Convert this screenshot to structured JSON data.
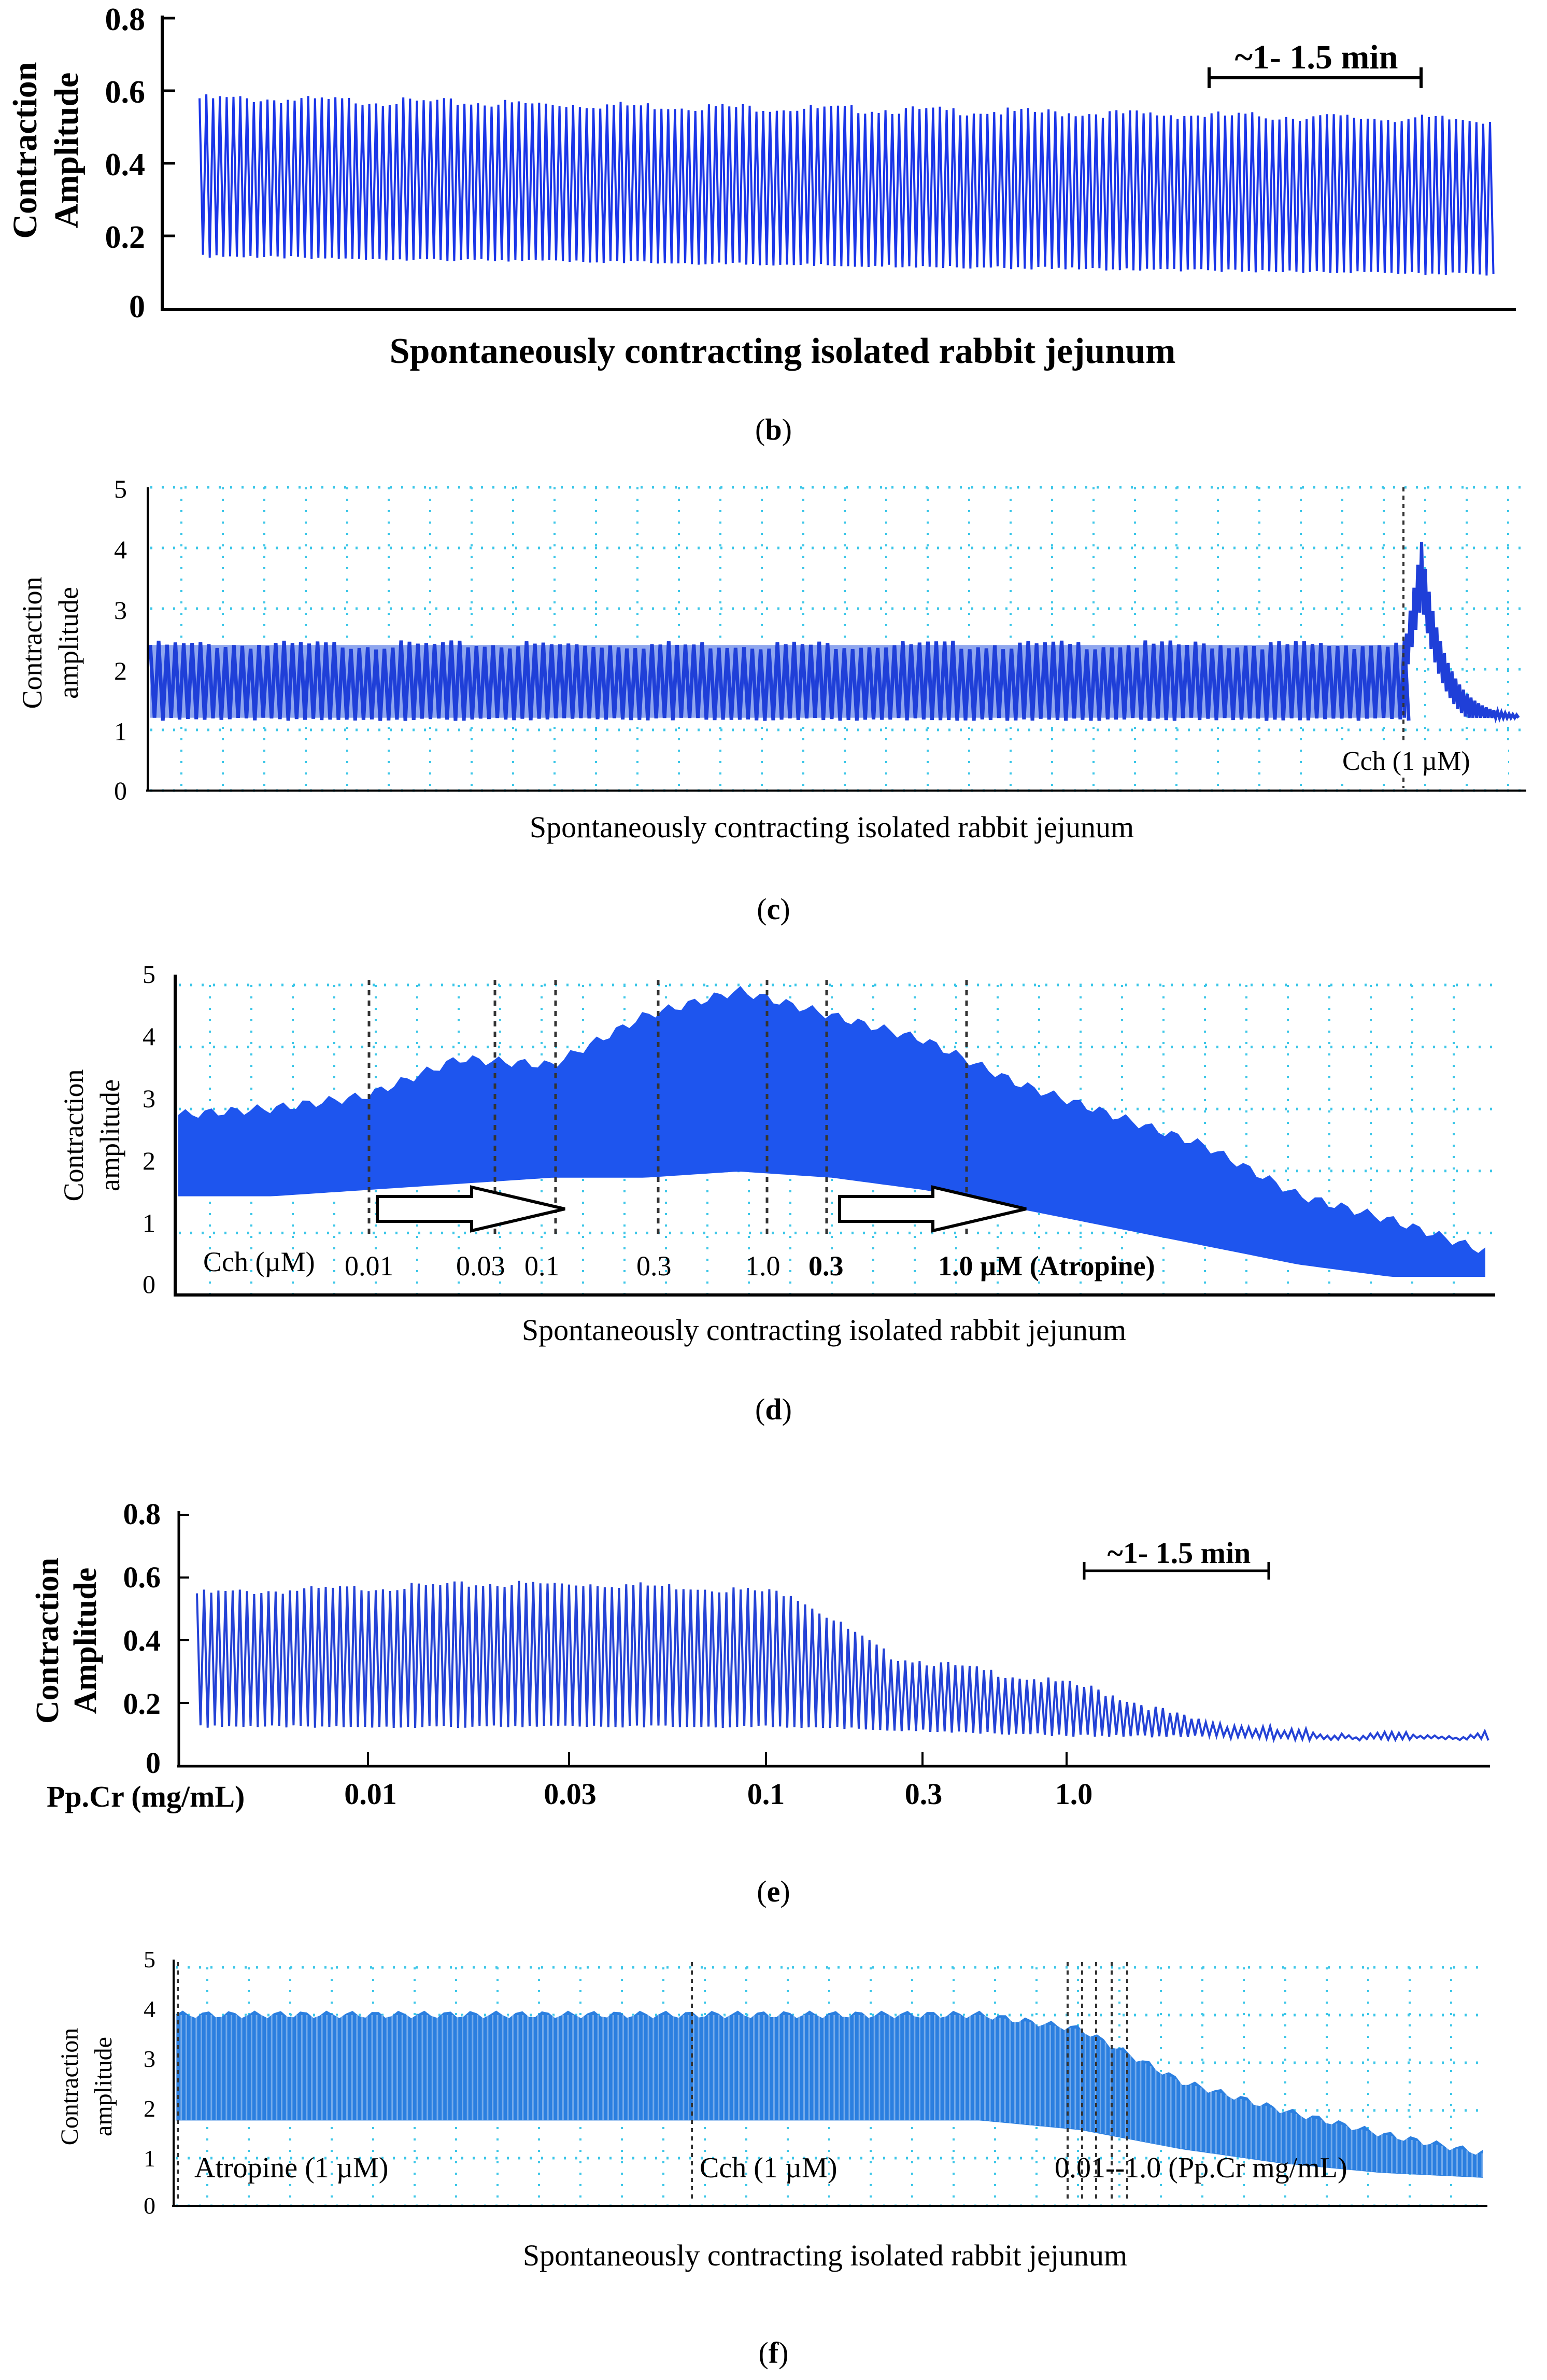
{
  "chart_data": [
    {
      "id": "b",
      "type": "line",
      "style": "bold",
      "title": "Spontaneously contracting isolated rabbit jejunum",
      "ylabel_lines": [
        "Contraction",
        "Amplitude"
      ],
      "yticks": [
        "0.8",
        "0.6",
        "0.4",
        "0.2",
        "0"
      ],
      "ylim": [
        0,
        0.8
      ],
      "trace": {
        "cycles": 190,
        "start_high": 0.58,
        "start_low": 0.15,
        "end_high": 0.52,
        "end_low": 0.1,
        "color": "#1a35e8"
      },
      "time_scale_label": "~1- 1.5 min",
      "caption": "b"
    },
    {
      "id": "c",
      "type": "line",
      "style": "plain",
      "title": "Spontaneously contracting isolated rabbit jejunum",
      "ylabel_lines": [
        "Contraction",
        "amplitude"
      ],
      "yticks": [
        "5",
        "4",
        "3",
        "2",
        "1",
        "0"
      ],
      "ylim": [
        0,
        5
      ],
      "trace": {
        "high": 2.4,
        "low": 1.2,
        "color": "#1f3fd8",
        "peak": 4.1,
        "peak_end": 1.2
      },
      "annotations": [
        "Cch (1 µM)"
      ],
      "caption": "c"
    },
    {
      "id": "d",
      "type": "line",
      "style": "plain",
      "title": "Spontaneously contracting isolated rabbit jejunum",
      "ylabel_lines": [
        "Contraction",
        "amplitude"
      ],
      "yticks": [
        "5",
        "4",
        "3",
        "2",
        "1",
        "0"
      ],
      "ylim": [
        0,
        5
      ],
      "agent_label": "Cch (µM)",
      "doses": [
        "0.01",
        "0.03",
        "0.1",
        "0.3",
        "1.0",
        "0.3",
        "1.0 µM (Atropine)"
      ],
      "envelope_high": [
        2.9,
        3.0,
        3.2,
        3.8,
        3.7,
        4.5,
        4.9,
        4.5,
        4.1,
        3.4,
        2.9,
        2.4,
        1.6,
        1.2,
        0.7
      ],
      "envelope_low": [
        1.6,
        1.6,
        1.7,
        1.8,
        1.9,
        1.9,
        2.0,
        1.9,
        1.7,
        1.4,
        1.1,
        0.8,
        0.5,
        0.3,
        0.3
      ],
      "caption": "d"
    },
    {
      "id": "e",
      "type": "line",
      "style": "bold",
      "ylabel_lines": [
        "Contraction",
        "Amplitude"
      ],
      "yticks": [
        "0.8",
        "0.6",
        "0.4",
        "0.2",
        "0"
      ],
      "ylim": [
        0,
        0.8
      ],
      "xlabel": "Pp.Cr (mg/mL)",
      "doses": [
        "0.01",
        "0.03",
        "0.1",
        "0.3",
        "1.0"
      ],
      "envelope_high": [
        0.55,
        0.56,
        0.57,
        0.58,
        0.58,
        0.57,
        0.55,
        0.35,
        0.3,
        0.25,
        0.15,
        0.11,
        0.1,
        0.1
      ],
      "envelope_low": [
        0.13,
        0.13,
        0.13,
        0.13,
        0.13,
        0.13,
        0.13,
        0.12,
        0.11,
        0.1,
        0.1,
        0.09,
        0.09,
        0.09
      ],
      "time_scale_label": "~1- 1.5 min",
      "caption": "e"
    },
    {
      "id": "f",
      "type": "line",
      "style": "plain",
      "title": "Spontaneously contracting isolated rabbit jejunum",
      "ylabel_lines": [
        "Contraction",
        "amplitude"
      ],
      "yticks": [
        "5",
        "4",
        "3",
        "2",
        "1",
        "0"
      ],
      "ylim": [
        0,
        5
      ],
      "annotations": [
        "Atropine (1 µM)",
        "Cch (1 µM)",
        "0.01--1.0 (Pp.Cr mg/mL)"
      ],
      "envelope_high": [
        4.0,
        4.0,
        4.0,
        4.0,
        4.0,
        4.0,
        4.0,
        4.0,
        4.0,
        3.7,
        2.6,
        2.0,
        1.5,
        1.1
      ],
      "envelope_low": [
        1.8,
        1.8,
        1.8,
        1.8,
        1.8,
        1.8,
        1.8,
        1.8,
        1.8,
        1.6,
        1.2,
        0.9,
        0.7,
        0.6
      ],
      "caption": "f"
    }
  ]
}
